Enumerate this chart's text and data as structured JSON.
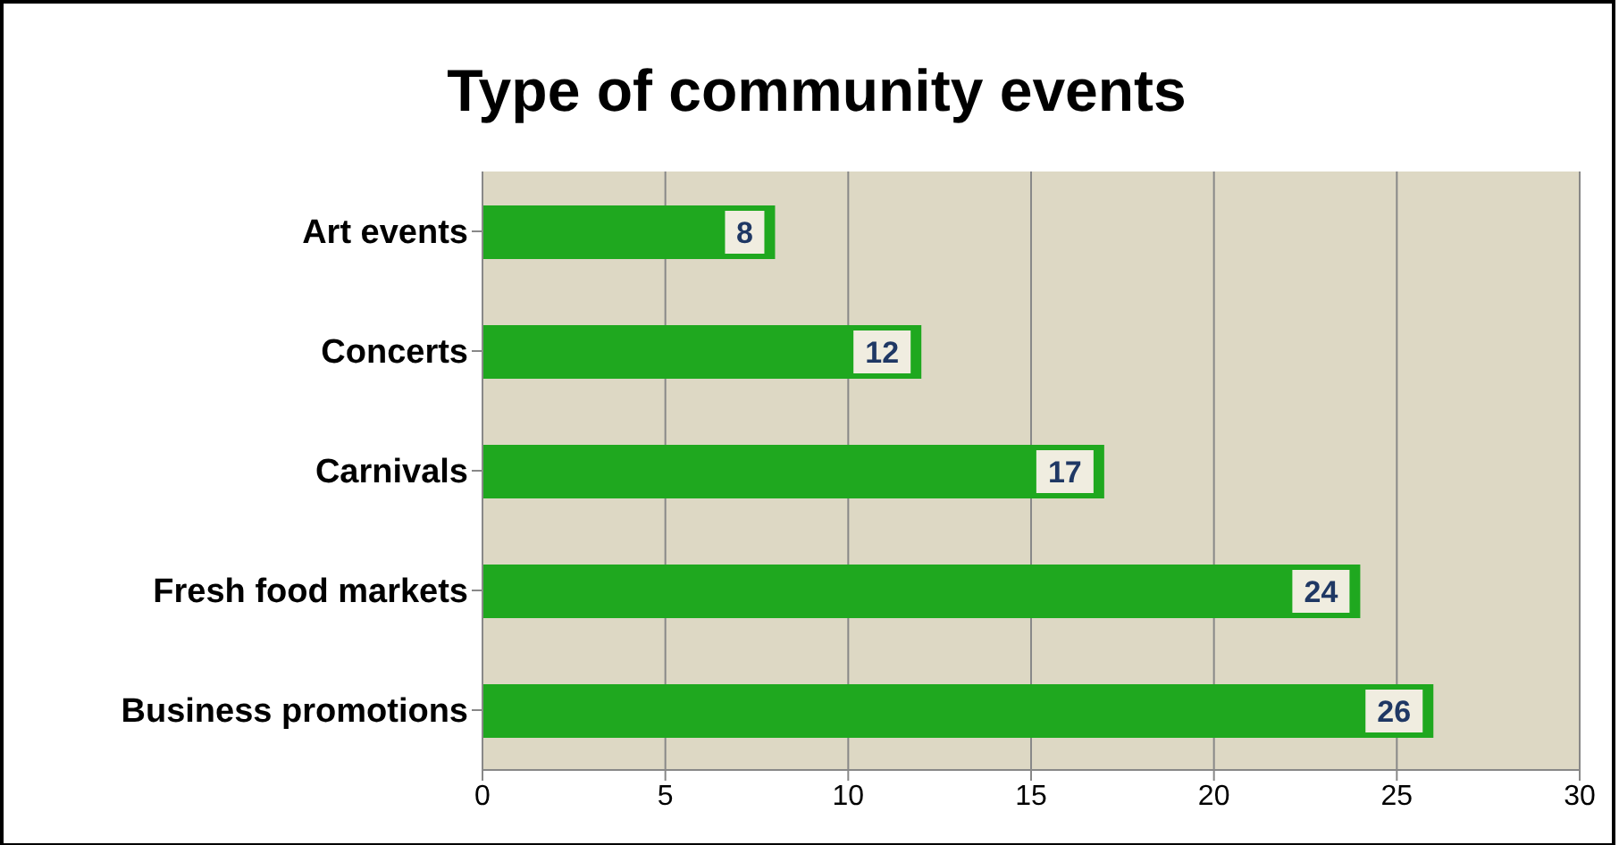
{
  "chart_data": {
    "type": "bar",
    "orientation": "horizontal",
    "title": "Type of community events",
    "categories": [
      "Art events",
      "Concerts",
      "Carnivals",
      "Fresh food markets",
      "Business promotions"
    ],
    "values": [
      8,
      12,
      17,
      24,
      26
    ],
    "color": "#1fa81f",
    "xlim": [
      0,
      30
    ],
    "xticks": [
      0,
      5,
      10,
      15,
      20,
      25,
      30
    ],
    "grid": "x",
    "data_labels": true
  }
}
